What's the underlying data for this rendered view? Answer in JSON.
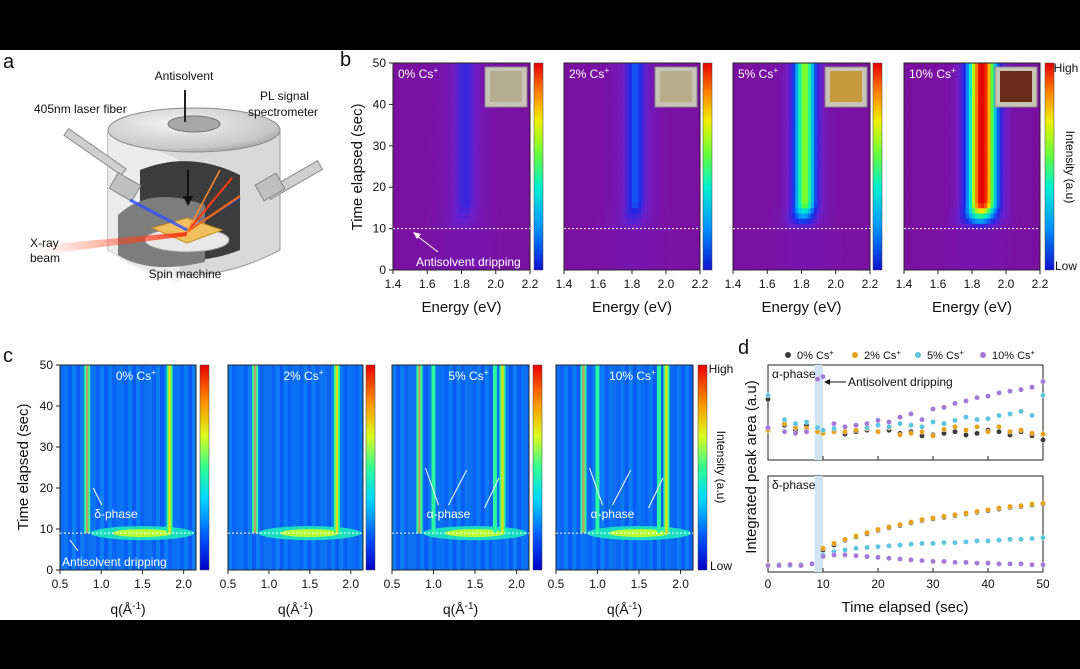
{
  "panel_labels": {
    "a": "a",
    "b": "b",
    "c": "c",
    "d": "d"
  },
  "schematic": {
    "antisolvent": "Antisolvent",
    "laser": "405nm laser fiber",
    "pl_line1": "PL signal",
    "pl_line2": "spectrometer",
    "xray_line1": "X-ray",
    "xray_line2": "beam",
    "spin": "Spin machine"
  },
  "chart_data": [
    {
      "type": "heatmap",
      "id": "b",
      "description_title": "In-situ PL maps",
      "panels": [
        {
          "label": "0% Cs",
          "sup": "+",
          "peak_ev": 1.82,
          "intensity": 0.12,
          "width": 0.05
        },
        {
          "label": "2% Cs",
          "sup": "+",
          "peak_ev": 1.82,
          "intensity": 0.22,
          "width": 0.05
        },
        {
          "label": "5% Cs",
          "sup": "+",
          "peak_ev": 1.82,
          "intensity": 0.62,
          "width": 0.06
        },
        {
          "label": "10% Cs",
          "sup": "+",
          "peak_ev": 1.86,
          "intensity": 0.98,
          "width": 0.08
        }
      ],
      "xlabel": "Energy (eV)",
      "ylabel": "Time elapsed (sec)",
      "xlim": [
        1.4,
        2.2
      ],
      "ylim": [
        0,
        50
      ],
      "xticks": [
        "1.4",
        "1.6",
        "1.8",
        "2.0",
        "2.2"
      ],
      "yticks": [
        "0",
        "10",
        "20",
        "30",
        "40",
        "50"
      ],
      "annotation": "Antisolvent dripping",
      "annotation_time": 10,
      "colorbar": {
        "label": "Intensity (a.u)",
        "high": "High",
        "low": "Low"
      }
    },
    {
      "type": "heatmap",
      "id": "c",
      "description_title": "In-situ GIWAXS maps",
      "panels": [
        {
          "label": "0% Cs",
          "sup": "+",
          "alpha": false,
          "annotation": "δ-phase"
        },
        {
          "label": "2% Cs",
          "sup": "+",
          "alpha": false,
          "annotation": ""
        },
        {
          "label": "5% Cs",
          "sup": "+",
          "alpha": true,
          "annotation": "α-phase"
        },
        {
          "label": "10% Cs",
          "sup": "+",
          "alpha": true,
          "annotation": "α-phase"
        }
      ],
      "delta_q": [
        0.83,
        1.83
      ],
      "alpha_q": [
        1.0,
        1.74
      ],
      "xlabel_q": "q(Å",
      "xlabel_sup": "-1",
      "xlabel_close": ")",
      "ylabel": "Time elapsed (sec)",
      "xlim": [
        0.5,
        2.15
      ],
      "ylim": [
        0,
        50
      ],
      "xticks": [
        "0.5",
        "1.0",
        "1.5",
        "2.0"
      ],
      "yticks": [
        "0",
        "10",
        "20",
        "30",
        "40",
        "50"
      ],
      "annotation": "Antisolvent dripping",
      "annotation_time": 9,
      "colorbar": {
        "label": "Intensity (a.u)",
        "high": "High",
        "low": "Low"
      }
    },
    {
      "type": "scatter",
      "id": "d",
      "xlabel": "Time elapsed (sec)",
      "ylabel": "Integrated peak area (a.u)",
      "xlim": [
        0,
        50
      ],
      "xticks": [
        "0",
        "10",
        "20",
        "30",
        "40",
        "50"
      ],
      "legend": [
        {
          "name": "0% Cs",
          "sup": "+",
          "color": "#3a3a3a"
        },
        {
          "name": "2% Cs",
          "sup": "+",
          "color": "#e6a21c"
        },
        {
          "name": "5% Cs",
          "sup": "+",
          "color": "#5fc4df"
        },
        {
          "name": "10% Cs",
          "sup": "+",
          "color": "#a37ad6"
        }
      ],
      "highlight_x": [
        8.5,
        10
      ],
      "alpha_panel": {
        "label": "α-phase",
        "annotation": "Antisolvent dripping",
        "ylim": [
          0,
          1
        ],
        "x": [
          0,
          3,
          5,
          7,
          9,
          10,
          12,
          14,
          16,
          18,
          20,
          22,
          24,
          26,
          28,
          30,
          32,
          34,
          36,
          38,
          40,
          42,
          44,
          46,
          48,
          50
        ],
        "series": [
          {
            "name": "0% Cs",
            "values": [
              0.7,
              0.38,
              0.32,
              0.38,
              0.35,
              0.3,
              0.3,
              0.27,
              0.3,
              0.32,
              0.3,
              0.32,
              0.28,
              0.3,
              0.25,
              0.26,
              0.28,
              0.3,
              0.26,
              0.28,
              0.32,
              0.3,
              0.26,
              0.3,
              0.25,
              0.2
            ]
          },
          {
            "name": "2% Cs",
            "values": [
              0.32,
              0.4,
              0.35,
              0.34,
              0.3,
              0.28,
              0.3,
              0.3,
              0.32,
              0.34,
              0.3,
              0.35,
              0.26,
              0.28,
              0.3,
              0.25,
              0.33,
              0.36,
              0.32,
              0.36,
              0.3,
              0.36,
              0.3,
              0.32,
              0.28,
              0.27
            ]
          },
          {
            "name": "5% Cs",
            "values": [
              0.75,
              0.45,
              0.4,
              0.42,
              0.35,
              0.32,
              0.34,
              0.36,
              0.38,
              0.35,
              0.38,
              0.36,
              0.4,
              0.38,
              0.36,
              0.42,
              0.4,
              0.44,
              0.48,
              0.45,
              0.46,
              0.5,
              0.52,
              0.55,
              0.5,
              0.75
            ]
          },
          {
            "name": "10% Cs",
            "values": [
              0.35,
              0.3,
              0.28,
              0.3,
              0.95,
              0.98,
              0.4,
              0.36,
              0.38,
              0.4,
              0.44,
              0.42,
              0.48,
              0.52,
              0.45,
              0.58,
              0.6,
              0.65,
              0.68,
              0.72,
              0.74,
              0.78,
              0.8,
              0.82,
              0.85,
              0.92
            ]
          }
        ]
      },
      "delta_panel": {
        "label": "δ-phase",
        "ylim": [
          0,
          1
        ],
        "x": [
          0,
          2,
          4,
          6,
          8,
          10,
          12,
          14,
          16,
          18,
          20,
          22,
          24,
          26,
          28,
          30,
          32,
          34,
          36,
          38,
          40,
          42,
          44,
          46,
          48,
          50
        ],
        "series": [
          {
            "name": "0% Cs",
            "values": [
              0.03,
              0.04,
              0.03,
              0.04,
              0.05,
              0.22,
              0.28,
              0.34,
              0.38,
              0.42,
              0.46,
              0.49,
              0.52,
              0.55,
              0.58,
              0.6,
              0.62,
              0.64,
              0.66,
              0.68,
              0.7,
              0.72,
              0.74,
              0.75,
              0.77,
              0.78
            ]
          },
          {
            "name": "2% Cs",
            "values": [
              0.04,
              0.03,
              0.04,
              0.03,
              0.05,
              0.24,
              0.3,
              0.35,
              0.39,
              0.43,
              0.47,
              0.5,
              0.53,
              0.56,
              0.59,
              0.61,
              0.63,
              0.65,
              0.67,
              0.69,
              0.71,
              0.73,
              0.75,
              0.76,
              0.78,
              0.79
            ]
          },
          {
            "name": "5% Cs",
            "values": [
              0.03,
              0.04,
              0.03,
              0.04,
              0.05,
              0.16,
              0.2,
              0.22,
              0.24,
              0.25,
              0.26,
              0.27,
              0.28,
              0.29,
              0.3,
              0.3,
              0.31,
              0.31,
              0.32,
              0.33,
              0.33,
              0.34,
              0.35,
              0.35,
              0.36,
              0.37
            ]
          },
          {
            "name": "10% Cs",
            "values": [
              0.03,
              0.03,
              0.04,
              0.03,
              0.05,
              0.14,
              0.16,
              0.16,
              0.15,
              0.14,
              0.13,
              0.12,
              0.11,
              0.1,
              0.09,
              0.08,
              0.08,
              0.07,
              0.07,
              0.06,
              0.06,
              0.05,
              0.05,
              0.05,
              0.04,
              0.04
            ]
          }
        ]
      }
    }
  ]
}
